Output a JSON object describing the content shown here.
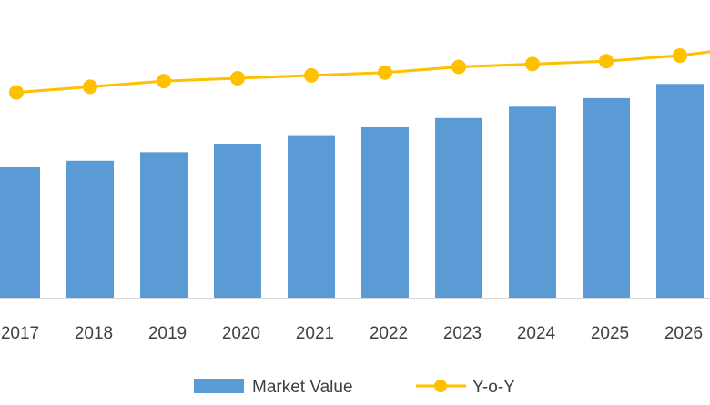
{
  "chart_data": {
    "type": "bar",
    "categories": [
      "2017",
      "2018",
      "2019",
      "2020",
      "2021",
      "2022",
      "2023",
      "2024",
      "2025",
      "2026"
    ],
    "series": [
      {
        "name": "Market Value",
        "type": "bar",
        "color": "#5b9bd5",
        "values": [
          46,
          48,
          51,
          54,
          57,
          60,
          63,
          67,
          70,
          75
        ]
      },
      {
        "name": "Y-o-Y",
        "type": "line",
        "color": "#ffc000",
        "values": [
          72,
          74,
          76,
          77,
          78,
          79,
          81,
          82,
          83,
          85
        ]
      }
    ],
    "ylim": [
      0,
      105
    ],
    "grid": false,
    "legend_position": "bottom"
  }
}
